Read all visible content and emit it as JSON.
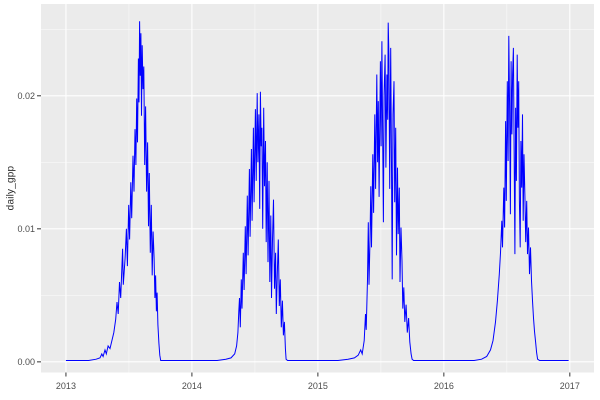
{
  "colors": {
    "figure_background": "#FFFFFF",
    "panel_background": "#EBEBEB",
    "grid_major": "#FFFFFF",
    "grid_minor": "#F7F7F7",
    "line": "#0000FF",
    "axis_text": "#4D4D4D",
    "axis_title": "#2B2B2B",
    "tick_mark": "#333333"
  },
  "chart_data": {
    "type": "line",
    "title": "",
    "subtitle": "",
    "xlabel": "",
    "ylabel": "daily_gpp",
    "legend": "none",
    "grid": "on",
    "style": "ggplot2-theme-grey",
    "x_axis": {
      "range": [
        2012.802,
        2017.192
      ],
      "major_ticks": [
        2013,
        2014,
        2015,
        2016,
        2017
      ],
      "tick_labels": [
        "2013",
        "2014",
        "2015",
        "2016",
        "2017"
      ],
      "minor_ticks": [
        2013.5,
        2014.5,
        2015.5,
        2016.5
      ]
    },
    "y_axis": {
      "range": [
        -0.0008,
        0.0269
      ],
      "major_ticks": [
        0,
        0.01,
        0.02
      ],
      "tick_labels": [
        "0.00",
        "0.01",
        "0.02"
      ],
      "minor_ticks": [
        0.005,
        0.015,
        0.025
      ]
    },
    "annual_peaks": [
      {
        "year": 2013,
        "max": 0.0256
      },
      {
        "year": 2014,
        "max": 0.0203
      },
      {
        "year": 2015,
        "max": 0.0255
      },
      {
        "year": 2016,
        "max": 0.0245
      }
    ],
    "series": [
      {
        "name": "daily_gpp",
        "color": "#0000FF",
        "points": [
          [
            2013.0,
            0.0001
          ],
          [
            2013.06,
            0.0001
          ],
          [
            2013.12,
            0.0001
          ],
          [
            2013.18,
            0.0001
          ],
          [
            2013.24,
            0.0002
          ],
          [
            2013.27,
            0.0003
          ],
          [
            2013.285,
            0.0006
          ],
          [
            2013.295,
            0.0004
          ],
          [
            2013.31,
            0.0009
          ],
          [
            2013.32,
            0.0006
          ],
          [
            2013.335,
            0.0012
          ],
          [
            2013.35,
            0.001
          ],
          [
            2013.365,
            0.0016
          ],
          [
            2013.38,
            0.0022
          ],
          [
            2013.395,
            0.0032
          ],
          [
            2013.405,
            0.0045
          ],
          [
            2013.415,
            0.0036
          ],
          [
            2013.425,
            0.006
          ],
          [
            2013.435,
            0.0048
          ],
          [
            2013.45,
            0.0085
          ],
          [
            2013.455,
            0.0058
          ],
          [
            2013.47,
            0.0078
          ],
          [
            2013.48,
            0.01
          ],
          [
            2013.488,
            0.0072
          ],
          [
            2013.498,
            0.0118
          ],
          [
            2013.505,
            0.0092
          ],
          [
            2013.515,
            0.0135
          ],
          [
            2013.522,
            0.0108
          ],
          [
            2013.532,
            0.0155
          ],
          [
            2013.54,
            0.0128
          ],
          [
            2013.548,
            0.0175
          ],
          [
            2013.555,
            0.0148
          ],
          [
            2013.562,
            0.0198
          ],
          [
            2013.568,
            0.0165
          ],
          [
            2013.575,
            0.0228
          ],
          [
            2013.58,
            0.0195
          ],
          [
            2013.585,
            0.0256
          ],
          [
            2013.59,
            0.0215
          ],
          [
            2013.595,
            0.0247
          ],
          [
            2013.6,
            0.0185
          ],
          [
            2013.605,
            0.0238
          ],
          [
            2013.612,
            0.0205
          ],
          [
            2013.618,
            0.0222
          ],
          [
            2013.625,
            0.0148
          ],
          [
            2013.632,
            0.0192
          ],
          [
            2013.64,
            0.0128
          ],
          [
            2013.648,
            0.0165
          ],
          [
            2013.655,
            0.0102
          ],
          [
            2013.662,
            0.0142
          ],
          [
            2013.67,
            0.0082
          ],
          [
            2013.678,
            0.0118
          ],
          [
            2013.685,
            0.0065
          ],
          [
            2013.692,
            0.0098
          ],
          [
            2013.7,
            0.0078
          ],
          [
            2013.706,
            0.0048
          ],
          [
            2013.712,
            0.0065
          ],
          [
            2013.718,
            0.0038
          ],
          [
            2013.724,
            0.0052
          ],
          [
            2013.73,
            0.0028
          ],
          [
            2013.738,
            0.0014
          ],
          [
            2013.745,
            0.0005
          ],
          [
            2013.752,
            0.0001
          ],
          [
            2013.8,
            0.0001
          ],
          [
            2013.88,
            0.0001
          ],
          [
            2013.96,
            0.0001
          ],
          [
            2014.04,
            0.0001
          ],
          [
            2014.12,
            0.0001
          ],
          [
            2014.2,
            0.0001
          ],
          [
            2014.27,
            0.0002
          ],
          [
            2014.31,
            0.0003
          ],
          [
            2014.34,
            0.0006
          ],
          [
            2014.355,
            0.0012
          ],
          [
            2014.365,
            0.0022
          ],
          [
            2014.372,
            0.0038
          ],
          [
            2014.378,
            0.0048
          ],
          [
            2014.384,
            0.0026
          ],
          [
            2014.392,
            0.0062
          ],
          [
            2014.398,
            0.004
          ],
          [
            2014.408,
            0.0082
          ],
          [
            2014.414,
            0.0054
          ],
          [
            2014.424,
            0.0102
          ],
          [
            2014.43,
            0.0066
          ],
          [
            2014.44,
            0.0125
          ],
          [
            2014.446,
            0.008
          ],
          [
            2014.456,
            0.0145
          ],
          [
            2014.462,
            0.0094
          ],
          [
            2014.472,
            0.016
          ],
          [
            2014.478,
            0.0106
          ],
          [
            2014.488,
            0.0176
          ],
          [
            2014.494,
            0.012
          ],
          [
            2014.504,
            0.019
          ],
          [
            2014.51,
            0.0136
          ],
          [
            2014.518,
            0.0202
          ],
          [
            2014.524,
            0.015
          ],
          [
            2014.532,
            0.0186
          ],
          [
            2014.538,
            0.0115
          ],
          [
            2014.544,
            0.0203
          ],
          [
            2014.55,
            0.0162
          ],
          [
            2014.556,
            0.0176
          ],
          [
            2014.562,
            0.01
          ],
          [
            2014.57,
            0.0191
          ],
          [
            2014.576,
            0.0132
          ],
          [
            2014.584,
            0.0166
          ],
          [
            2014.59,
            0.009
          ],
          [
            2014.598,
            0.015
          ],
          [
            2014.604,
            0.0075
          ],
          [
            2014.612,
            0.0136
          ],
          [
            2014.618,
            0.006
          ],
          [
            2014.626,
            0.011
          ],
          [
            2014.632,
            0.0048
          ],
          [
            2014.64,
            0.0092
          ],
          [
            2014.648,
            0.0122
          ],
          [
            2014.656,
            0.0055
          ],
          [
            2014.664,
            0.0082
          ],
          [
            2014.67,
            0.0036
          ],
          [
            2014.678,
            0.0066
          ],
          [
            2014.686,
            0.0092
          ],
          [
            2014.694,
            0.0042
          ],
          [
            2014.702,
            0.0062
          ],
          [
            2014.71,
            0.0026
          ],
          [
            2014.718,
            0.0046
          ],
          [
            2014.726,
            0.002
          ],
          [
            2014.734,
            0.003
          ],
          [
            2014.742,
            0.001
          ],
          [
            2014.748,
            0.0002
          ],
          [
            2014.76,
            0.0001
          ],
          [
            2014.84,
            0.0001
          ],
          [
            2014.92,
            0.0001
          ],
          [
            2015.0,
            0.0001
          ],
          [
            2015.08,
            0.0001
          ],
          [
            2015.16,
            0.0001
          ],
          [
            2015.24,
            0.0002
          ],
          [
            2015.29,
            0.0003
          ],
          [
            2015.32,
            0.0005
          ],
          [
            2015.34,
            0.0009
          ],
          [
            2015.352,
            0.0006
          ],
          [
            2015.368,
            0.0016
          ],
          [
            2015.378,
            0.0036
          ],
          [
            2015.384,
            0.0024
          ],
          [
            2015.394,
            0.0062
          ],
          [
            2015.4,
            0.0105
          ],
          [
            2015.406,
            0.0058
          ],
          [
            2015.414,
            0.0092
          ],
          [
            2015.42,
            0.0132
          ],
          [
            2015.426,
            0.0086
          ],
          [
            2015.436,
            0.0156
          ],
          [
            2015.442,
            0.0112
          ],
          [
            2015.452,
            0.0186
          ],
          [
            2015.458,
            0.013
          ],
          [
            2015.468,
            0.0216
          ],
          [
            2015.474,
            0.015
          ],
          [
            2015.48,
            0.0196
          ],
          [
            2015.486,
            0.0124
          ],
          [
            2015.496,
            0.0226
          ],
          [
            2015.502,
            0.0162
          ],
          [
            2015.508,
            0.0241
          ],
          [
            2015.514,
            0.0176
          ],
          [
            2015.52,
            0.0105
          ],
          [
            2015.526,
            0.0201
          ],
          [
            2015.534,
            0.0231
          ],
          [
            2015.54,
            0.0146
          ],
          [
            2015.548,
            0.0216
          ],
          [
            2015.554,
            0.0182
          ],
          [
            2015.558,
            0.0255
          ],
          [
            2015.564,
            0.0231
          ],
          [
            2015.57,
            0.013
          ],
          [
            2015.578,
            0.0236
          ],
          [
            2015.584,
            0.016
          ],
          [
            2015.59,
            0.0062
          ],
          [
            2015.596,
            0.0186
          ],
          [
            2015.604,
            0.0211
          ],
          [
            2015.61,
            0.012
          ],
          [
            2015.618,
            0.0176
          ],
          [
            2015.624,
            0.008
          ],
          [
            2015.632,
            0.0146
          ],
          [
            2015.638,
            0.0096
          ],
          [
            2015.646,
            0.0131
          ],
          [
            2015.652,
            0.006
          ],
          [
            2015.66,
            0.0101
          ],
          [
            2015.668,
            0.0076
          ],
          [
            2015.674,
            0.004
          ],
          [
            2015.682,
            0.0056
          ],
          [
            2015.69,
            0.003
          ],
          [
            2015.7,
            0.0043
          ],
          [
            2015.71,
            0.0022
          ],
          [
            2015.72,
            0.0033
          ],
          [
            2015.73,
            0.0015
          ],
          [
            2015.74,
            0.0006
          ],
          [
            2015.748,
            0.0002
          ],
          [
            2015.76,
            0.0001
          ],
          [
            2015.84,
            0.0001
          ],
          [
            2015.92,
            0.0001
          ],
          [
            2016.0,
            0.0001
          ],
          [
            2016.08,
            0.0001
          ],
          [
            2016.16,
            0.0001
          ],
          [
            2016.24,
            0.0001
          ],
          [
            2016.3,
            0.0002
          ],
          [
            2016.34,
            0.0004
          ],
          [
            2016.37,
            0.0009
          ],
          [
            2016.39,
            0.0016
          ],
          [
            2016.41,
            0.003
          ],
          [
            2016.425,
            0.0046
          ],
          [
            2016.44,
            0.0066
          ],
          [
            2016.45,
            0.0082
          ],
          [
            2016.46,
            0.0106
          ],
          [
            2016.466,
            0.0086
          ],
          [
            2016.476,
            0.0131
          ],
          [
            2016.482,
            0.0101
          ],
          [
            2016.49,
            0.0181
          ],
          [
            2016.496,
            0.0121
          ],
          [
            2016.504,
            0.0211
          ],
          [
            2016.51,
            0.0151
          ],
          [
            2016.516,
            0.0245
          ],
          [
            2016.522,
            0.0191
          ],
          [
            2016.528,
            0.0111
          ],
          [
            2016.534,
            0.0226
          ],
          [
            2016.54,
            0.0171
          ],
          [
            2016.546,
            0.0216
          ],
          [
            2016.552,
            0.0236
          ],
          [
            2016.558,
            0.0161
          ],
          [
            2016.564,
            0.0081
          ],
          [
            2016.57,
            0.0191
          ],
          [
            2016.576,
            0.0136
          ],
          [
            2016.582,
            0.0231
          ],
          [
            2016.588,
            0.0176
          ],
          [
            2016.594,
            0.0211
          ],
          [
            2016.6,
            0.0121
          ],
          [
            2016.606,
            0.0086
          ],
          [
            2016.612,
            0.0166
          ],
          [
            2016.618,
            0.0131
          ],
          [
            2016.624,
            0.0186
          ],
          [
            2016.63,
            0.0106
          ],
          [
            2016.636,
            0.0156
          ],
          [
            2016.644,
            0.0121
          ],
          [
            2016.65,
            0.009
          ],
          [
            2016.658,
            0.0121
          ],
          [
            2016.664,
            0.0081
          ],
          [
            2016.672,
            0.0101
          ],
          [
            2016.68,
            0.0066
          ],
          [
            2016.688,
            0.0086
          ],
          [
            2016.696,
            0.0061
          ],
          [
            2016.704,
            0.0046
          ],
          [
            2016.712,
            0.0033
          ],
          [
            2016.72,
            0.0023
          ],
          [
            2016.728,
            0.0015
          ],
          [
            2016.736,
            0.0007
          ],
          [
            2016.744,
            0.0002
          ],
          [
            2016.76,
            0.0001
          ],
          [
            2016.84,
            0.0001
          ],
          [
            2016.92,
            0.0001
          ],
          [
            2016.99,
            0.0001
          ]
        ]
      }
    ]
  }
}
